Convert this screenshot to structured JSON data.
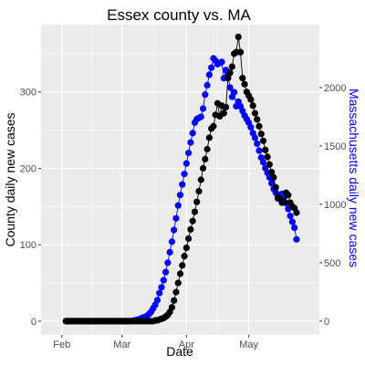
{
  "chart_data": {
    "type": "line",
    "title": "Essex county vs. MA",
    "xlabel": "Date",
    "ylabel": "County daily new cases",
    "y2label": "Massachusetts daily new cases",
    "x_ticks": [
      {
        "date": "2020-02-01",
        "label": "Feb"
      },
      {
        "date": "2020-03-01",
        "label": "Mar"
      },
      {
        "date": "2020-04-01",
        "label": "Apr"
      },
      {
        "date": "2020-05-01",
        "label": "May"
      }
    ],
    "y_ticks": [
      0,
      100,
      200,
      300
    ],
    "y2_ticks": [
      0,
      500,
      1000,
      1500,
      2000
    ],
    "xlim": [
      "2020-01-22",
      "2020-06-04"
    ],
    "ylim": [
      -18,
      388
    ],
    "y2lim": [
      -118,
      2539
    ],
    "grid": true,
    "legend": "none",
    "series": [
      {
        "axis": "right",
        "color": "#0000ff",
        "points": [
          [
            "2020-02-03",
            0
          ],
          [
            "2020-02-04",
            0
          ],
          [
            "2020-02-05",
            0
          ],
          [
            "2020-02-06",
            0
          ],
          [
            "2020-02-07",
            0
          ],
          [
            "2020-02-08",
            0
          ],
          [
            "2020-02-09",
            0
          ],
          [
            "2020-02-10",
            0
          ],
          [
            "2020-02-11",
            0
          ],
          [
            "2020-02-12",
            0
          ],
          [
            "2020-02-13",
            0
          ],
          [
            "2020-02-14",
            0
          ],
          [
            "2020-02-15",
            0
          ],
          [
            "2020-02-16",
            0
          ],
          [
            "2020-02-17",
            0
          ],
          [
            "2020-02-18",
            0
          ],
          [
            "2020-02-19",
            0
          ],
          [
            "2020-02-20",
            0
          ],
          [
            "2020-02-21",
            0
          ],
          [
            "2020-02-22",
            0
          ],
          [
            "2020-02-23",
            0
          ],
          [
            "2020-02-24",
            0
          ],
          [
            "2020-02-25",
            0
          ],
          [
            "2020-02-26",
            0
          ],
          [
            "2020-02-27",
            0
          ],
          [
            "2020-02-28",
            0
          ],
          [
            "2020-02-29",
            0
          ],
          [
            "2020-03-01",
            0
          ],
          [
            "2020-03-02",
            0
          ],
          [
            "2020-03-03",
            0
          ],
          [
            "2020-03-04",
            0
          ],
          [
            "2020-03-05",
            0
          ],
          [
            "2020-03-06",
            2
          ],
          [
            "2020-03-07",
            5
          ],
          [
            "2020-03-08",
            10
          ],
          [
            "2020-03-09",
            15
          ],
          [
            "2020-03-10",
            22
          ],
          [
            "2020-03-11",
            30
          ],
          [
            "2020-03-12",
            35
          ],
          [
            "2020-03-13",
            45
          ],
          [
            "2020-03-14",
            60
          ],
          [
            "2020-03-15",
            80
          ],
          [
            "2020-03-16",
            110
          ],
          [
            "2020-03-17",
            140
          ],
          [
            "2020-03-18",
            180
          ],
          [
            "2020-03-19",
            240
          ],
          [
            "2020-03-20",
            290
          ],
          [
            "2020-03-21",
            350
          ],
          [
            "2020-03-22",
            420
          ],
          [
            "2020-03-23",
            500
          ],
          [
            "2020-03-24",
            590
          ],
          [
            "2020-03-25",
            680
          ],
          [
            "2020-03-26",
            780
          ],
          [
            "2020-03-27",
            880
          ],
          [
            "2020-03-28",
            990
          ],
          [
            "2020-03-29",
            1080
          ],
          [
            "2020-03-30",
            1170
          ],
          [
            "2020-03-31",
            1260
          ],
          [
            "2020-04-01",
            1350
          ],
          [
            "2020-04-02",
            1440
          ],
          [
            "2020-04-03",
            1530
          ],
          [
            "2020-04-04",
            1610
          ],
          [
            "2020-04-05",
            1700
          ],
          [
            "2020-04-06",
            1730
          ],
          [
            "2020-04-07",
            1740
          ],
          [
            "2020-04-08",
            1750
          ],
          [
            "2020-04-09",
            1820
          ],
          [
            "2020-04-10",
            1940
          ],
          [
            "2020-04-11",
            2020
          ],
          [
            "2020-04-12",
            2110
          ],
          [
            "2020-04-13",
            2170
          ],
          [
            "2020-04-14",
            2250
          ],
          [
            "2020-04-15",
            2230
          ],
          [
            "2020-04-16",
            2200
          ],
          [
            "2020-04-17",
            2210
          ],
          [
            "2020-04-18",
            2220
          ],
          [
            "2020-04-19",
            2080
          ],
          [
            "2020-04-20",
            2150
          ],
          [
            "2020-04-21",
            2100
          ],
          [
            "2020-04-22",
            2000
          ],
          [
            "2020-04-23",
            1920
          ],
          [
            "2020-04-24",
            1960
          ],
          [
            "2020-04-25",
            1840
          ],
          [
            "2020-04-26",
            1880
          ],
          [
            "2020-04-27",
            1840
          ],
          [
            "2020-04-28",
            1800
          ],
          [
            "2020-04-29",
            1760
          ],
          [
            "2020-04-30",
            1730
          ],
          [
            "2020-05-01",
            1700
          ],
          [
            "2020-05-02",
            1660
          ],
          [
            "2020-05-03",
            1610
          ],
          [
            "2020-05-04",
            1570
          ],
          [
            "2020-05-05",
            1520
          ],
          [
            "2020-05-06",
            1460
          ],
          [
            "2020-05-07",
            1400
          ],
          [
            "2020-05-08",
            1360
          ],
          [
            "2020-05-09",
            1310
          ],
          [
            "2020-05-10",
            1270
          ],
          [
            "2020-05-11",
            1230
          ],
          [
            "2020-05-12",
            1180
          ],
          [
            "2020-05-13",
            1130
          ],
          [
            "2020-05-14",
            1100
          ],
          [
            "2020-05-15",
            1050
          ],
          [
            "2020-05-16",
            1080
          ],
          [
            "2020-05-17",
            1090
          ],
          [
            "2020-05-18",
            1060
          ],
          [
            "2020-05-19",
            1010
          ],
          [
            "2020-05-20",
            960
          ],
          [
            "2020-05-21",
            900
          ],
          [
            "2020-05-22",
            850
          ],
          [
            "2020-05-23",
            800
          ],
          [
            "2020-05-24",
            700
          ]
        ]
      },
      {
        "axis": "left",
        "color": "#000000",
        "points": [
          [
            "2020-02-03",
            0
          ],
          [
            "2020-02-04",
            0
          ],
          [
            "2020-02-05",
            0
          ],
          [
            "2020-02-06",
            0
          ],
          [
            "2020-02-07",
            0
          ],
          [
            "2020-02-08",
            0
          ],
          [
            "2020-02-09",
            0
          ],
          [
            "2020-02-10",
            0
          ],
          [
            "2020-02-11",
            0
          ],
          [
            "2020-02-12",
            0
          ],
          [
            "2020-02-13",
            0
          ],
          [
            "2020-02-14",
            0
          ],
          [
            "2020-02-15",
            0
          ],
          [
            "2020-02-16",
            0
          ],
          [
            "2020-02-17",
            0
          ],
          [
            "2020-02-18",
            0
          ],
          [
            "2020-02-19",
            0
          ],
          [
            "2020-02-20",
            0
          ],
          [
            "2020-02-21",
            0
          ],
          [
            "2020-02-22",
            0
          ],
          [
            "2020-02-23",
            0
          ],
          [
            "2020-02-24",
            0
          ],
          [
            "2020-02-25",
            0
          ],
          [
            "2020-02-26",
            0
          ],
          [
            "2020-02-27",
            0
          ],
          [
            "2020-02-28",
            0
          ],
          [
            "2020-02-29",
            0
          ],
          [
            "2020-03-01",
            0
          ],
          [
            "2020-03-02",
            0
          ],
          [
            "2020-03-03",
            0
          ],
          [
            "2020-03-04",
            0
          ],
          [
            "2020-03-05",
            0
          ],
          [
            "2020-03-06",
            0
          ],
          [
            "2020-03-07",
            0
          ],
          [
            "2020-03-08",
            0
          ],
          [
            "2020-03-09",
            0
          ],
          [
            "2020-03-10",
            0
          ],
          [
            "2020-03-11",
            0
          ],
          [
            "2020-03-12",
            0
          ],
          [
            "2020-03-13",
            0
          ],
          [
            "2020-03-14",
            0
          ],
          [
            "2020-03-15",
            0
          ],
          [
            "2020-03-16",
            0
          ],
          [
            "2020-03-17",
            1
          ],
          [
            "2020-03-18",
            1
          ],
          [
            "2020-03-19",
            2
          ],
          [
            "2020-03-20",
            3
          ],
          [
            "2020-03-21",
            4
          ],
          [
            "2020-03-22",
            6
          ],
          [
            "2020-03-23",
            8
          ],
          [
            "2020-03-24",
            12
          ],
          [
            "2020-03-25",
            18
          ],
          [
            "2020-03-26",
            27
          ],
          [
            "2020-03-27",
            38
          ],
          [
            "2020-03-28",
            50
          ],
          [
            "2020-03-29",
            62
          ],
          [
            "2020-03-30",
            73
          ],
          [
            "2020-03-31",
            85
          ],
          [
            "2020-04-01",
            96
          ],
          [
            "2020-04-02",
            108
          ],
          [
            "2020-04-03",
            120
          ],
          [
            "2020-04-04",
            131
          ],
          [
            "2020-04-05",
            143
          ],
          [
            "2020-04-06",
            156
          ],
          [
            "2020-04-07",
            170
          ],
          [
            "2020-04-08",
            185
          ],
          [
            "2020-04-09",
            200
          ],
          [
            "2020-04-10",
            212
          ],
          [
            "2020-04-11",
            225
          ],
          [
            "2020-04-12",
            240
          ],
          [
            "2020-04-13",
            252
          ],
          [
            "2020-04-14",
            255
          ],
          [
            "2020-04-15",
            270
          ],
          [
            "2020-04-16",
            285
          ],
          [
            "2020-04-17",
            268
          ],
          [
            "2020-04-18",
            282
          ],
          [
            "2020-04-19",
            272
          ],
          [
            "2020-04-20",
            280
          ],
          [
            "2020-04-21",
            318
          ],
          [
            "2020-04-22",
            325
          ],
          [
            "2020-04-23",
            333
          ],
          [
            "2020-04-24",
            350
          ],
          [
            "2020-04-25",
            352
          ],
          [
            "2020-04-26",
            372
          ],
          [
            "2020-04-27",
            352
          ],
          [
            "2020-04-28",
            318
          ],
          [
            "2020-04-29",
            310
          ],
          [
            "2020-04-30",
            300
          ],
          [
            "2020-05-01",
            295
          ],
          [
            "2020-05-02",
            290
          ],
          [
            "2020-05-03",
            282
          ],
          [
            "2020-05-04",
            272
          ],
          [
            "2020-05-05",
            264
          ],
          [
            "2020-05-06",
            255
          ],
          [
            "2020-05-07",
            245
          ],
          [
            "2020-05-08",
            236
          ],
          [
            "2020-05-09",
            224
          ],
          [
            "2020-05-10",
            215
          ],
          [
            "2020-05-11",
            205
          ],
          [
            "2020-05-12",
            195
          ],
          [
            "2020-05-13",
            188
          ],
          [
            "2020-05-14",
            175
          ],
          [
            "2020-05-15",
            162
          ],
          [
            "2020-05-16",
            160
          ],
          [
            "2020-05-17",
            155
          ],
          [
            "2020-05-18",
            156
          ],
          [
            "2020-05-19",
            168
          ],
          [
            "2020-05-20",
            165
          ],
          [
            "2020-05-21",
            155
          ],
          [
            "2020-05-22",
            150
          ],
          [
            "2020-05-23",
            148
          ],
          [
            "2020-05-24",
            142
          ]
        ]
      }
    ]
  }
}
